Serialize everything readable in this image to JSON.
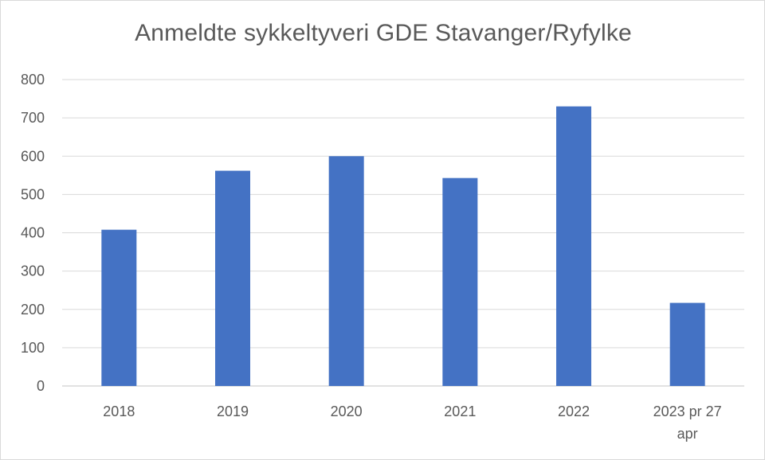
{
  "chart_data": {
    "type": "bar",
    "title": "Anmeldte sykkeltyveri GDE Stavanger/Ryfylke",
    "categories": [
      "2018",
      "2019",
      "2020",
      "2021",
      "2022",
      "2023 pr 27 apr"
    ],
    "values": [
      408,
      562,
      600,
      543,
      730,
      217
    ],
    "ylim": [
      0,
      800
    ],
    "yticks": [
      0,
      100,
      200,
      300,
      400,
      500,
      600,
      700,
      800
    ],
    "grid": true,
    "legend": "none",
    "bar_color": "#4472c4",
    "grid_color": "#d9d9d9"
  }
}
